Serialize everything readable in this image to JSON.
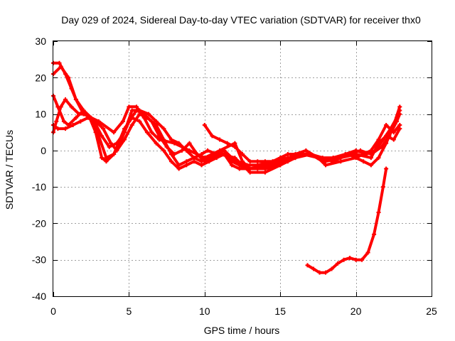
{
  "chart_data": {
    "type": "line",
    "title": "Day 029 of 2024, Sidereal Day-to-day VTEC variation (SDTVAR) for receiver thx0",
    "xlabel": "GPS time / hours",
    "ylabel": "SDTVAR / TECUs",
    "xlim": [
      0,
      25
    ],
    "ylim": [
      -40,
      30
    ],
    "xticks": [
      0,
      5,
      10,
      15,
      20,
      25
    ],
    "xtick_labels": [
      "0",
      "5",
      "10",
      "15",
      "20",
      "25"
    ],
    "yticks": [
      -40,
      -30,
      -20,
      -10,
      0,
      10,
      20,
      30
    ],
    "ytick_labels": [
      "-40",
      "-30",
      "-20",
      "-10",
      "0",
      "10",
      "20",
      "30"
    ],
    "grid": true,
    "color": "#ff0000",
    "series": [
      {
        "name": "track-1",
        "points": [
          [
            0,
            21
          ],
          [
            0.5,
            23
          ],
          [
            1,
            20
          ],
          [
            1.5,
            14
          ],
          [
            2,
            10
          ],
          [
            3,
            8
          ],
          [
            4,
            5
          ],
          [
            4.6,
            8
          ],
          [
            5,
            12
          ],
          [
            5.5,
            12
          ],
          [
            6,
            9
          ],
          [
            6.5,
            5
          ],
          [
            7,
            3
          ],
          [
            8,
            2
          ],
          [
            9,
            0
          ],
          [
            10,
            -2
          ],
          [
            11,
            0
          ],
          [
            12,
            2
          ],
          [
            12.5,
            -3
          ],
          [
            13,
            -5
          ],
          [
            14,
            -5
          ],
          [
            15,
            -4
          ],
          [
            16,
            -2
          ],
          [
            17,
            -1
          ],
          [
            18,
            -3
          ],
          [
            19,
            -2
          ],
          [
            20,
            -1
          ],
          [
            21,
            -2
          ],
          [
            21.5,
            2
          ],
          [
            22,
            4
          ],
          [
            22.5,
            3
          ],
          [
            22.9,
            6
          ]
        ]
      },
      {
        "name": "track-2",
        "points": [
          [
            0,
            24
          ],
          [
            0.4,
            24
          ],
          [
            0.8,
            21
          ],
          [
            1.2,
            17
          ],
          [
            1.5,
            14
          ],
          [
            2,
            11
          ],
          [
            2.5,
            9
          ],
          [
            3,
            4
          ],
          [
            3.5,
            -2
          ],
          [
            4,
            -1
          ],
          [
            4.5,
            3
          ],
          [
            5,
            8
          ],
          [
            5.5,
            11
          ],
          [
            6,
            10
          ],
          [
            6.5,
            8
          ],
          [
            7,
            4
          ],
          [
            7.5,
            1
          ],
          [
            8,
            -1
          ],
          [
            8.5,
            0
          ],
          [
            9,
            2
          ],
          [
            9.5,
            -1
          ],
          [
            10,
            -3
          ],
          [
            10.5,
            -2
          ],
          [
            11,
            -1
          ],
          [
            12,
            -2
          ],
          [
            12.5,
            -4
          ],
          [
            13,
            -6
          ],
          [
            14,
            -6
          ],
          [
            15,
            -4
          ],
          [
            16,
            -1
          ],
          [
            16.7,
            0
          ],
          [
            17.5,
            -2
          ],
          [
            18,
            -4
          ],
          [
            19,
            -3
          ],
          [
            20,
            -2
          ],
          [
            20.5,
            -1
          ],
          [
            21,
            0
          ],
          [
            21.5,
            3
          ],
          [
            22,
            7
          ],
          [
            22.5,
            5
          ],
          [
            22.9,
            7
          ]
        ]
      },
      {
        "name": "track-3",
        "points": [
          [
            0,
            15
          ],
          [
            0.3,
            12
          ],
          [
            0.7,
            8
          ],
          [
            1,
            7
          ],
          [
            1.5,
            9
          ],
          [
            2,
            11
          ],
          [
            2.4,
            9
          ],
          [
            2.8,
            5
          ],
          [
            3.2,
            -2
          ],
          [
            3.5,
            -3
          ],
          [
            4,
            -1
          ],
          [
            4.3,
            2
          ],
          [
            4.7,
            6
          ],
          [
            5.2,
            9
          ],
          [
            5.7,
            8
          ],
          [
            6.2,
            5
          ],
          [
            6.8,
            2
          ],
          [
            7.3,
            0
          ],
          [
            7.8,
            -3
          ],
          [
            8.3,
            -5
          ],
          [
            8.8,
            -4
          ],
          [
            9.3,
            -3
          ],
          [
            9.8,
            -4
          ],
          [
            10.3,
            -3
          ],
          [
            10.8,
            -2
          ],
          [
            11.3,
            -1
          ],
          [
            11.8,
            -4
          ],
          [
            12.3,
            -5
          ],
          [
            13,
            -5
          ],
          [
            14,
            -4
          ],
          [
            15,
            -3
          ],
          [
            16,
            -2
          ],
          [
            17,
            -1
          ],
          [
            17.8,
            -2
          ],
          [
            18.5,
            -2
          ],
          [
            19.5,
            -1
          ],
          [
            20.3,
            0
          ],
          [
            21,
            -1
          ],
          [
            21.7,
            1
          ],
          [
            22.2,
            4
          ],
          [
            22.7,
            8
          ],
          [
            22.9,
            10
          ]
        ]
      },
      {
        "name": "track-4",
        "points": [
          [
            0,
            7
          ],
          [
            0.3,
            6
          ],
          [
            0.8,
            6
          ],
          [
            1.3,
            7
          ],
          [
            1.8,
            8
          ],
          [
            2.3,
            9
          ],
          [
            2.8,
            8
          ],
          [
            3.3,
            6
          ],
          [
            3.8,
            2
          ],
          [
            4.2,
            0
          ],
          [
            4.7,
            3
          ],
          [
            5.2,
            7
          ],
          [
            5.7,
            10
          ],
          [
            6.2,
            9
          ],
          [
            6.8,
            7
          ],
          [
            7.3,
            3
          ],
          [
            7.8,
            -1
          ],
          [
            8.3,
            -4
          ],
          [
            8.8,
            -3
          ],
          [
            9.3,
            -2
          ],
          [
            9.8,
            -3
          ],
          [
            10.3,
            -2
          ],
          [
            10.8,
            -1
          ],
          [
            11.3,
            -1
          ],
          [
            11.8,
            -3
          ],
          [
            12.3,
            -4
          ],
          [
            12.8,
            -4
          ],
          [
            13.5,
            -4
          ],
          [
            14.5,
            -3
          ],
          [
            15.5,
            -2
          ],
          [
            16.3,
            -1
          ],
          [
            17,
            -1
          ],
          [
            17.8,
            -3
          ],
          [
            18.5,
            -2
          ],
          [
            19.3,
            -1
          ],
          [
            20,
            0
          ],
          [
            20.7,
            -1
          ],
          [
            21.3,
            0
          ],
          [
            21.8,
            3
          ],
          [
            22.3,
            6
          ],
          [
            22.7,
            9
          ],
          [
            22.9,
            11
          ]
        ]
      },
      {
        "name": "track-5",
        "points": [
          [
            0,
            5
          ],
          [
            0.2,
            8
          ],
          [
            0.5,
            12
          ],
          [
            0.8,
            14
          ],
          [
            1.2,
            12
          ],
          [
            1.7,
            10
          ],
          [
            2.2,
            10
          ],
          [
            2.7,
            8
          ],
          [
            3.2,
            4
          ],
          [
            3.7,
            1
          ],
          [
            4.2,
            2
          ],
          [
            4.7,
            5
          ],
          [
            5.2,
            11
          ],
          [
            5.7,
            11
          ],
          [
            6.3,
            10
          ],
          [
            6.8,
            8
          ],
          [
            7.3,
            6
          ],
          [
            7.8,
            3
          ],
          [
            8.3,
            2
          ],
          [
            8.8,
            0
          ],
          [
            9.3,
            -2
          ],
          [
            9.8,
            -1
          ],
          [
            10.2,
            0
          ],
          [
            10.8,
            -1
          ],
          [
            11.3,
            0
          ],
          [
            11.8,
            -2
          ],
          [
            12.3,
            -4
          ],
          [
            12.8,
            -5
          ],
          [
            13.5,
            -5
          ],
          [
            14.5,
            -4
          ],
          [
            15.5,
            -3
          ],
          [
            16.5,
            -1
          ],
          [
            17.5,
            -2
          ],
          [
            18.5,
            -3
          ],
          [
            19.5,
            -1
          ],
          [
            20.5,
            -3
          ],
          [
            21,
            -4
          ],
          [
            21.5,
            -2
          ],
          [
            22,
            2
          ],
          [
            22.5,
            7
          ],
          [
            22.9,
            12
          ]
        ]
      },
      {
        "name": "track-6",
        "points": [
          [
            10,
            7
          ],
          [
            10.5,
            4
          ],
          [
            11,
            3
          ],
          [
            11.5,
            2
          ],
          [
            12,
            1
          ],
          [
            12.5,
            -1
          ],
          [
            13,
            -3
          ],
          [
            13.5,
            -3
          ],
          [
            14,
            -3
          ],
          [
            14.5,
            -3
          ],
          [
            15,
            -2
          ],
          [
            15.5,
            -1
          ],
          [
            16,
            -1
          ],
          [
            16.5,
            -1
          ],
          [
            17,
            -1
          ]
        ]
      },
      {
        "name": "track-7",
        "points": [
          [
            16.8,
            -31.5
          ],
          [
            17.2,
            -32.5
          ],
          [
            17.6,
            -33.5
          ],
          [
            18,
            -33.5
          ],
          [
            18.4,
            -32.5
          ],
          [
            18.8,
            -31
          ],
          [
            19.2,
            -30
          ],
          [
            19.6,
            -29.5
          ],
          [
            20,
            -30
          ],
          [
            20.4,
            -30
          ],
          [
            20.8,
            -28
          ],
          [
            21.2,
            -23
          ],
          [
            21.5,
            -17
          ],
          [
            21.8,
            -10
          ],
          [
            22,
            -5
          ]
        ]
      }
    ]
  }
}
